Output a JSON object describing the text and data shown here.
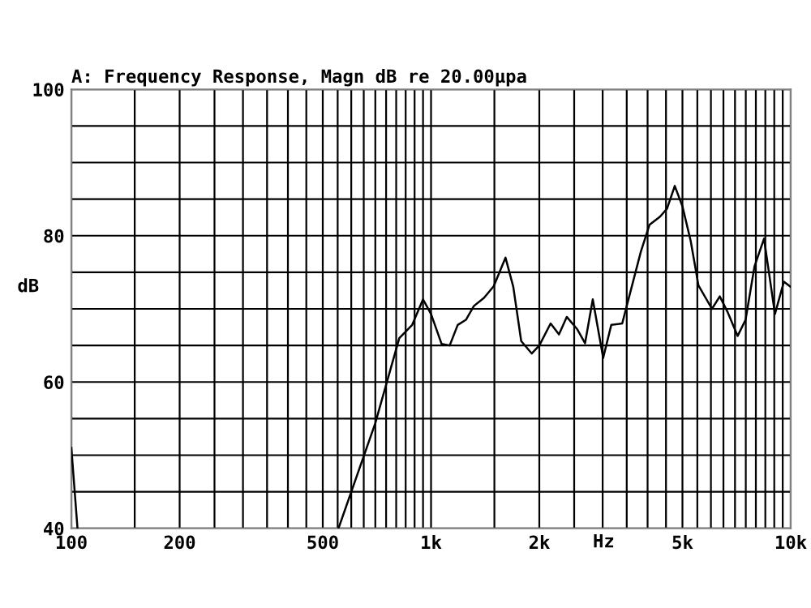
{
  "chart_data": {
    "type": "line",
    "title": "A: Frequency Response, Magn dB re 20.00µpa",
    "xlabel": "Hz",
    "ylabel": "dB",
    "log": "x",
    "grid": true,
    "marker": "none",
    "line_style": "solid",
    "x": [
      100,
      104,
      300,
      553,
      700,
      816,
      886,
      950,
      1000,
      1070,
      1127,
      1186,
      1250,
      1316,
      1403,
      1494,
      1611,
      1693,
      1781,
      1905,
      2000,
      2150,
      2268,
      2384,
      2551,
      2680,
      2816,
      3010,
      3170,
      3400,
      3578,
      3830,
      4050,
      4332,
      4530,
      4760,
      5000,
      5270,
      5540,
      6040,
      6350,
      6670,
      7120,
      7490,
      7930,
      8430,
      9040,
      9570,
      10000
    ],
    "series": [
      {
        "color": "#000000",
        "values": [
          51,
          40,
          null,
          40,
          54.4,
          66,
          67.8,
          71.3,
          69.3,
          65.2,
          65,
          67.8,
          68.5,
          70.4,
          71.5,
          73.1,
          77,
          73,
          65.6,
          63.9,
          65,
          68,
          66.5,
          68.9,
          67.2,
          65.3,
          71.3,
          63.3,
          67.8,
          68,
          72.2,
          77.8,
          81.5,
          82.6,
          83.7,
          86.8,
          84,
          79.3,
          73.2,
          70,
          71.7,
          69.6,
          66.3,
          68.5,
          75.8,
          79.6,
          69.3,
          73.7,
          73
        ]
      }
    ],
    "xlim": [
      100,
      10000
    ],
    "ylim": [
      40,
      100
    ],
    "xticks": [
      {
        "value": 100,
        "label": "100"
      },
      {
        "value": 150,
        "label": null
      },
      {
        "value": 200,
        "label": "200"
      },
      {
        "value": 250,
        "label": null
      },
      {
        "value": 300,
        "label": null
      },
      {
        "value": 350,
        "label": null
      },
      {
        "value": 400,
        "label": null
      },
      {
        "value": 450,
        "label": null
      },
      {
        "value": 500,
        "label": "500"
      },
      {
        "value": 550,
        "label": null
      },
      {
        "value": 600,
        "label": null
      },
      {
        "value": 650,
        "label": null
      },
      {
        "value": 700,
        "label": null
      },
      {
        "value": 750,
        "label": null
      },
      {
        "value": 800,
        "label": null
      },
      {
        "value": 850,
        "label": null
      },
      {
        "value": 900,
        "label": null
      },
      {
        "value": 950,
        "label": null
      },
      {
        "value": 1000,
        "label": "1k"
      },
      {
        "value": 1500,
        "label": null
      },
      {
        "value": 2000,
        "label": "2k"
      },
      {
        "value": 2500,
        "label": null
      },
      {
        "value": 3000,
        "label": null
      },
      {
        "value": 3500,
        "label": null
      },
      {
        "value": 4000,
        "label": null
      },
      {
        "value": 4500,
        "label": null
      },
      {
        "value": 5000,
        "label": "5k"
      },
      {
        "value": 5500,
        "label": null
      },
      {
        "value": 6000,
        "label": null
      },
      {
        "value": 6500,
        "label": null
      },
      {
        "value": 7000,
        "label": null
      },
      {
        "value": 7500,
        "label": null
      },
      {
        "value": 8000,
        "label": null
      },
      {
        "value": 8500,
        "label": null
      },
      {
        "value": 9000,
        "label": null
      },
      {
        "value": 9500,
        "label": null
      },
      {
        "value": 10000,
        "label": "10k"
      }
    ],
    "yticks": [
      40,
      {
        "value": 45,
        "label": null
      },
      {
        "value": 50,
        "label": null
      },
      {
        "value": 55,
        "label": null
      },
      60,
      {
        "value": 65,
        "label": null
      },
      {
        "value": 70,
        "label": null
      },
      {
        "value": 75,
        "label": null
      },
      80,
      {
        "value": 85,
        "label": null
      },
      {
        "value": 90,
        "label": null
      },
      {
        "value": 95,
        "label": null
      },
      100
    ]
  }
}
